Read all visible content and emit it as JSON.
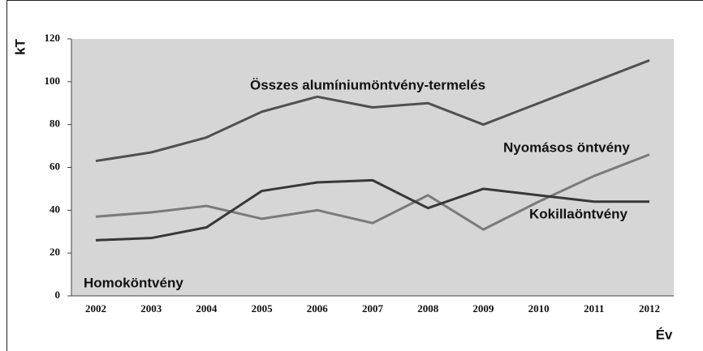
{
  "chart_data": {
    "type": "line",
    "y_label": "kT",
    "x_label": "Év",
    "categories": [
      "2002",
      "2003",
      "2004",
      "2005",
      "2006",
      "2007",
      "2008",
      "2009",
      "2010",
      "2011",
      "2012"
    ],
    "series": [
      {
        "name": "Összes alumíniumöntvény-termelés",
        "color": "#505050",
        "values": [
          63,
          67,
          74,
          86,
          93,
          88,
          90,
          80,
          90,
          100,
          110
        ]
      },
      {
        "name": "Nyomásos öntvény",
        "color": "#7a7a7a",
        "values": [
          37,
          39,
          42,
          36,
          40,
          34,
          47,
          31,
          44,
          56,
          66
        ]
      },
      {
        "name": "Kokillaöntvény",
        "color": "#383838",
        "values": [
          26,
          27,
          32,
          49,
          53,
          54,
          41,
          50,
          47,
          44,
          44
        ]
      }
    ],
    "annotations": [
      "Homoköntvény"
    ],
    "ylim": [
      0,
      120
    ],
    "yticks": [
      0,
      20,
      40,
      60,
      80,
      100,
      120
    ]
  }
}
